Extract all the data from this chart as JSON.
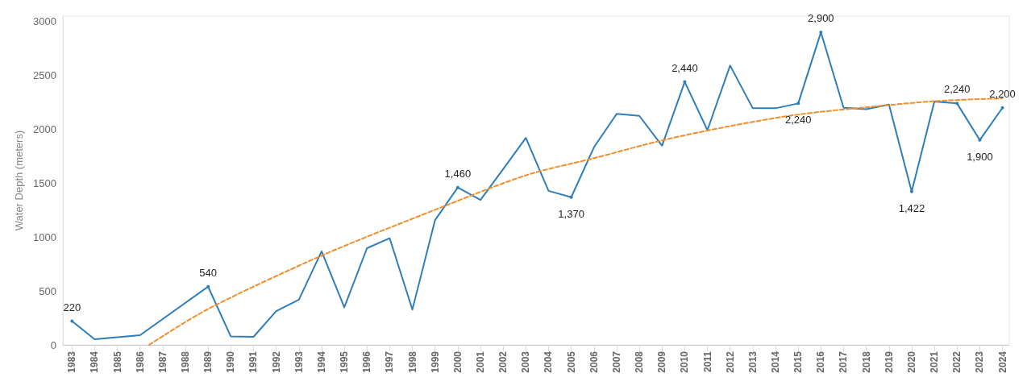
{
  "chart_data": {
    "type": "line",
    "ylabel": "Water Depth (meters)",
    "x": [
      1983,
      1984,
      1985,
      1986,
      1987,
      1988,
      1989,
      1990,
      1991,
      1992,
      1993,
      1994,
      1995,
      1996,
      1997,
      1998,
      1999,
      2000,
      2001,
      2002,
      2003,
      2004,
      2005,
      2006,
      2007,
      2008,
      2009,
      2010,
      2011,
      2012,
      2013,
      2014,
      2015,
      2016,
      2017,
      2018,
      2019,
      2020,
      2021,
      2022,
      2023,
      2024
    ],
    "xlim": [
      1982.6,
      2024.3
    ],
    "xticks": [
      1983,
      1984,
      1985,
      1986,
      1987,
      1988,
      1989,
      1990,
      1991,
      1992,
      1993,
      1994,
      1995,
      1996,
      1997,
      1998,
      1999,
      2000,
      2001,
      2002,
      2003,
      2004,
      2005,
      2006,
      2007,
      2008,
      2009,
      2010,
      2011,
      2012,
      2013,
      2014,
      2015,
      2016,
      2017,
      2018,
      2019,
      2020,
      2021,
      2022,
      2023,
      2024
    ],
    "ylim": [
      0,
      3050
    ],
    "yticks": [
      0,
      500,
      1000,
      1500,
      2000,
      2500,
      3000
    ],
    "grid": false,
    "marker": "none",
    "series": [
      {
        "color": "#2f7ebc",
        "line_style": "solid",
        "values": [
          220,
          52,
          null,
          90,
          null,
          null,
          540,
          78,
          75,
          313,
          420,
          868,
          348,
          897,
          989,
          328,
          1158,
          1460,
          1345,
          1630,
          1920,
          1429,
          1370,
          1833,
          2143,
          2125,
          1848,
          2440,
          1992,
          2591,
          2195,
          2195,
          2240,
          2900,
          2200,
          2186,
          2230,
          1422,
          2258,
          2240,
          1900,
          2200
        ],
        "value_labels": [
          "220",
          null,
          null,
          null,
          null,
          null,
          "540",
          null,
          null,
          null,
          null,
          null,
          null,
          null,
          null,
          null,
          null,
          "1,460",
          null,
          null,
          null,
          null,
          "1,370",
          null,
          null,
          null,
          null,
          "2,440",
          null,
          null,
          null,
          null,
          "2,240",
          "2,900",
          null,
          null,
          null,
          "1,422",
          null,
          "2,240",
          "1,900",
          "2,200"
        ]
      },
      {
        "color": "#f28e2b",
        "line_style": "dashed",
        "x": [
          1986.4,
          1989,
          1994,
          1999,
          2003,
          2006,
          2009,
          2012,
          2015,
          2018,
          2021,
          2024
        ],
        "values": [
          0,
          333,
          828,
          1253,
          1573,
          1732,
          1897,
          2030,
          2137,
          2204,
          2261,
          2287
        ]
      }
    ]
  }
}
